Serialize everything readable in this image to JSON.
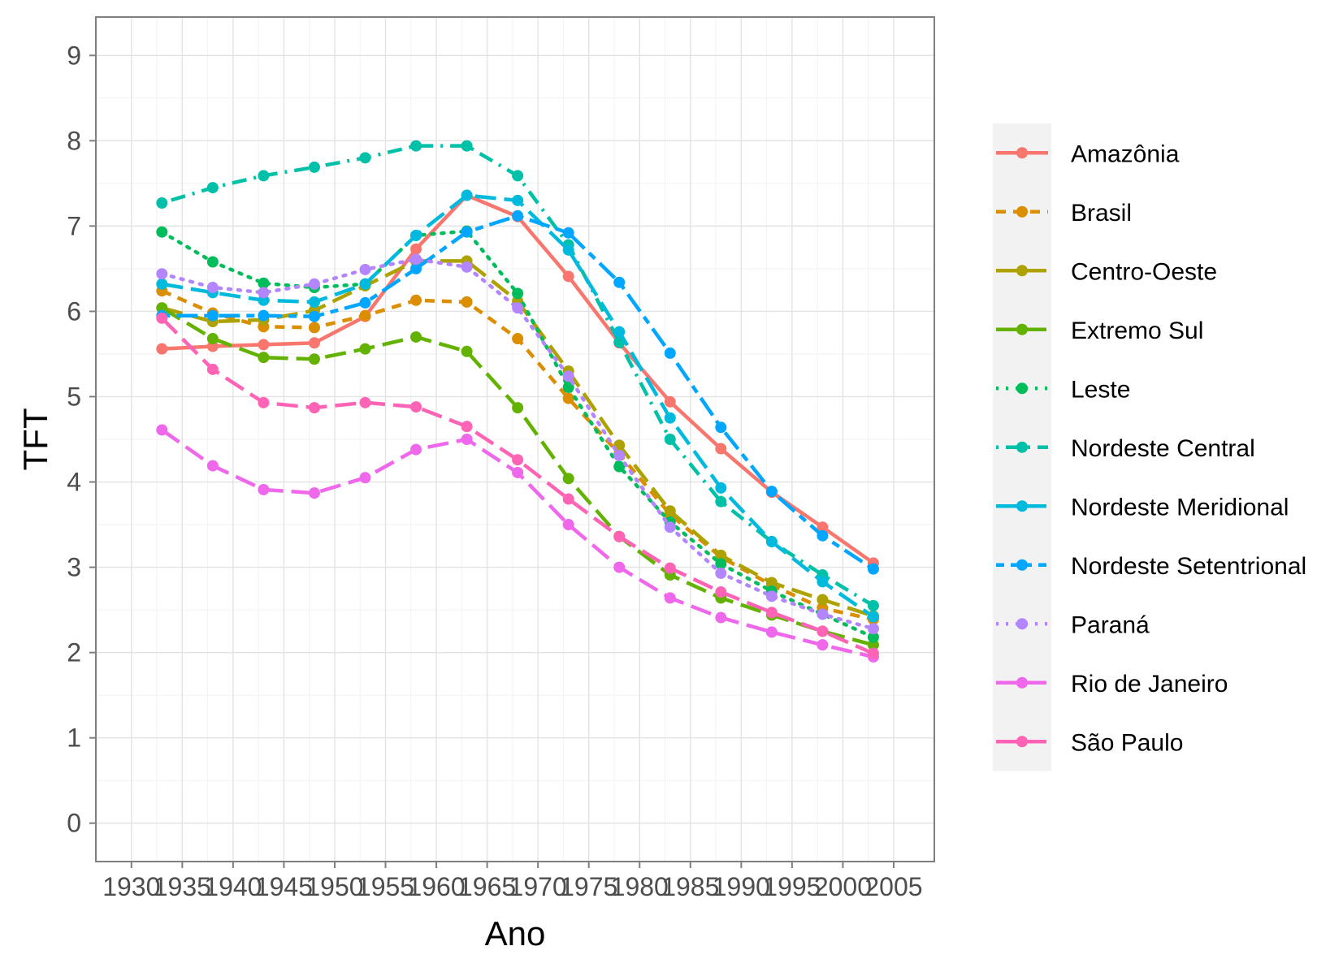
{
  "chart_data": {
    "type": "line",
    "xlabel": "Ano",
    "ylabel": "TFT",
    "xlim": [
      1926.5,
      2009
    ],
    "ylim": [
      -0.45,
      9.45
    ],
    "x_ticks": [
      "1930",
      "1935",
      "1940",
      "1945",
      "1950",
      "1955",
      "1960",
      "1965",
      "1970",
      "1975",
      "1980",
      "1985",
      "1990",
      "1995",
      "2000",
      "2005"
    ],
    "y_ticks": [
      "0",
      "1",
      "2",
      "3",
      "4",
      "5",
      "6",
      "7",
      "8",
      "9"
    ],
    "grid": true,
    "legend_position": "right",
    "x": [
      1933,
      1938,
      1943,
      1948,
      1953,
      1958,
      1963,
      1968,
      1973,
      1978,
      1983,
      1988,
      1993,
      1998,
      2003
    ],
    "series": [
      {
        "name": "Amazônia",
        "color": "#F8766D",
        "dash": "solid",
        "values": [
          5.56,
          5.59,
          5.61,
          5.63,
          5.94,
          6.73,
          7.36,
          7.11,
          6.41,
          5.63,
          4.94,
          4.39,
          3.88,
          3.47,
          3.05
        ]
      },
      {
        "name": "Brasil",
        "color": "#DB8E00",
        "dash": "dashed",
        "values": [
          6.24,
          5.98,
          5.82,
          5.81,
          5.95,
          6.13,
          6.11,
          5.68,
          4.98,
          4.33,
          3.62,
          3.12,
          2.79,
          2.52,
          2.39
        ]
      },
      {
        "name": "Centro-Oeste",
        "color": "#AEA200",
        "dash": "longdash",
        "values": [
          6.04,
          5.88,
          5.9,
          6.01,
          6.3,
          6.59,
          6.59,
          6.12,
          5.3,
          4.43,
          3.66,
          3.14,
          2.82,
          2.62,
          2.43
        ]
      },
      {
        "name": "Extremo Sul",
        "color": "#64B200",
        "dash": "longdash",
        "values": [
          6.04,
          5.68,
          5.46,
          5.44,
          5.56,
          5.7,
          5.53,
          4.87,
          4.04,
          3.36,
          2.91,
          2.64,
          2.44,
          2.25,
          2.09
        ]
      },
      {
        "name": "Leste",
        "color": "#00BD5C",
        "dash": "dotted",
        "values": [
          6.93,
          6.58,
          6.33,
          6.28,
          6.32,
          6.89,
          6.94,
          6.21,
          5.11,
          4.18,
          3.53,
          3.04,
          2.72,
          2.45,
          2.18
        ]
      },
      {
        "name": "Nordeste Central",
        "color": "#00C1A7",
        "dash": "dotdash",
        "values": [
          7.27,
          7.45,
          7.59,
          7.69,
          7.8,
          7.94,
          7.94,
          7.59,
          6.78,
          5.64,
          4.5,
          3.77,
          3.3,
          2.91,
          2.55
        ]
      },
      {
        "name": "Nordeste Meridional",
        "color": "#00BADE",
        "dash": "longdash",
        "values": [
          6.32,
          6.22,
          6.13,
          6.11,
          6.32,
          6.89,
          7.36,
          7.3,
          6.72,
          5.76,
          4.75,
          3.93,
          3.3,
          2.83,
          2.42
        ]
      },
      {
        "name": "Nordeste Setentrional",
        "color": "#00A6FF",
        "dash": "twodash",
        "values": [
          5.95,
          5.95,
          5.95,
          5.94,
          6.1,
          6.5,
          6.93,
          7.12,
          6.92,
          6.34,
          5.51,
          4.64,
          3.89,
          3.37,
          2.98
        ]
      },
      {
        "name": "Paraná",
        "color": "#B385FF",
        "dash": "dotted",
        "values": [
          6.44,
          6.28,
          6.22,
          6.32,
          6.49,
          6.61,
          6.52,
          6.04,
          5.24,
          4.31,
          3.47,
          2.93,
          2.66,
          2.45,
          2.28
        ]
      },
      {
        "name": "Rio de Janeiro",
        "color": "#EF67EB",
        "dash": "longdash",
        "values": [
          4.61,
          4.19,
          3.91,
          3.87,
          4.05,
          4.38,
          4.5,
          4.11,
          3.5,
          3.0,
          2.64,
          2.41,
          2.24,
          2.09,
          1.95
        ]
      },
      {
        "name": "São Paulo",
        "color": "#FF63B6",
        "dash": "longdash",
        "values": [
          5.92,
          5.32,
          4.93,
          4.87,
          4.93,
          4.88,
          4.65,
          4.26,
          3.8,
          3.36,
          2.99,
          2.71,
          2.47,
          2.25,
          1.99
        ]
      }
    ]
  }
}
